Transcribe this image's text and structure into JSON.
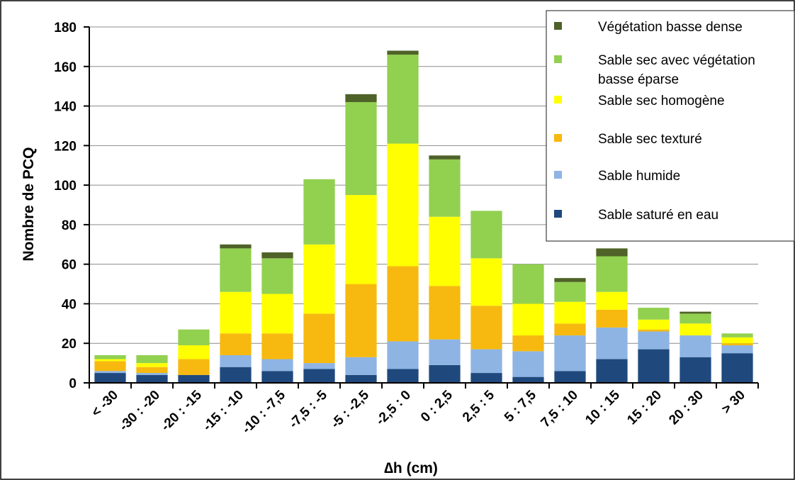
{
  "chart_data": {
    "type": "bar",
    "stacked": true,
    "xlabel": "∆h (cm)",
    "ylabel": "Nombre de PCQ",
    "ylim": [
      0,
      180
    ],
    "yticks": [
      0,
      20,
      40,
      60,
      80,
      100,
      120,
      140,
      160,
      180
    ],
    "grid": "horizontal",
    "legend_position": "top-right",
    "categories": [
      "< -30",
      "-30 : -20",
      "-20 : -15",
      "-15 : -10",
      "-10 : -7,5",
      "-7,5 : -5",
      "-5 : -2,5",
      "-2,5 : 0",
      "0 : 2,5",
      "2,5 : 5",
      "5 : 7,5",
      "7,5 : 10",
      "10 : 15",
      "15 : 20",
      "20 : 30",
      "> 30"
    ],
    "series": [
      {
        "name": "Sable saturé en eau",
        "color": "#1f497d",
        "values": [
          5,
          4,
          4,
          8,
          6,
          7,
          4,
          7,
          9,
          5,
          3,
          6,
          12,
          17,
          13,
          15
        ]
      },
      {
        "name": "Sable humide",
        "color": "#8eb4e3",
        "values": [
          1,
          1,
          0,
          6,
          6,
          3,
          9,
          14,
          13,
          12,
          13,
          18,
          16,
          9,
          11,
          4
        ]
      },
      {
        "name": "Sable sec texturé",
        "color": "#f7b90f",
        "values": [
          5,
          3,
          8,
          11,
          13,
          25,
          37,
          38,
          27,
          22,
          8,
          6,
          9,
          1,
          0,
          1
        ]
      },
      {
        "name": "Sable sec homogène",
        "color": "#ffff00",
        "values": [
          1,
          2,
          7,
          21,
          20,
          35,
          45,
          62,
          35,
          24,
          16,
          11,
          9,
          5,
          6,
          3
        ]
      },
      {
        "name": "Sable sec avec végétation basse éparse",
        "color": "#92d050",
        "values": [
          2,
          4,
          8,
          22,
          18,
          33,
          47,
          45,
          29,
          24,
          20,
          10,
          18,
          6,
          5,
          2
        ]
      },
      {
        "name": "Végétation basse dense",
        "color": "#4f6228",
        "values": [
          0,
          0,
          0,
          2,
          3,
          0,
          4,
          2,
          2,
          0,
          0,
          2,
          4,
          0,
          1,
          0
        ]
      }
    ]
  },
  "legend": {
    "items": [
      {
        "lines": [
          "Végétation basse dense"
        ],
        "color": "#4f6228"
      },
      {
        "lines": [
          "Sable sec avec végétation",
          "basse éparse"
        ],
        "color": "#92d050"
      },
      {
        "lines": [
          "Sable sec homogène"
        ],
        "color": "#ffff00"
      },
      {
        "lines": [
          "Sable sec texturé"
        ],
        "color": "#f7b90f"
      },
      {
        "lines": [
          "Sable humide"
        ],
        "color": "#8eb4e3"
      },
      {
        "lines": [
          "Sable saturé en eau"
        ],
        "color": "#1f497d"
      }
    ]
  }
}
